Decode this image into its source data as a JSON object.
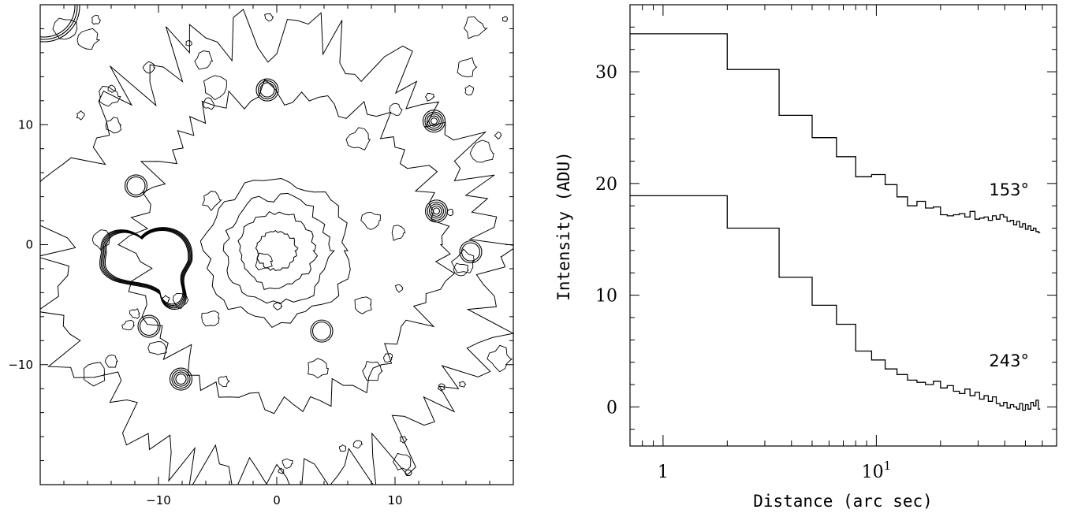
{
  "chart_data": [
    {
      "type": "contour",
      "xlim": [
        -20,
        20
      ],
      "ylim": [
        -20,
        20
      ],
      "x_ticks": [
        -10,
        0,
        10
      ],
      "y_ticks": [
        -10,
        0,
        10
      ],
      "x_tick_labels": [
        "−10",
        "0",
        "10"
      ],
      "y_tick_labels": [
        "−10",
        "0",
        "10"
      ],
      "grid": false,
      "features": [
        {
          "name": "double-core",
          "x": -10.5,
          "y": -1,
          "levels": 5
        },
        {
          "name": "diffuse-core",
          "x": 0,
          "y": -0.5,
          "levels": 4
        },
        {
          "name": "star",
          "x": 13.5,
          "y": 2.8,
          "levels": 5
        },
        {
          "name": "star",
          "x": 13.3,
          "y": 10.3,
          "levels": 5
        },
        {
          "name": "star",
          "x": -8.1,
          "y": -11.2,
          "levels": 4
        },
        {
          "name": "star",
          "x": -0.8,
          "y": 12.9,
          "levels": 3
        },
        {
          "name": "star",
          "x": 16.4,
          "y": -0.6,
          "levels": 2
        },
        {
          "name": "star",
          "x": 3.8,
          "y": -7.2,
          "levels": 2
        },
        {
          "name": "star",
          "x": -10.8,
          "y": -6.8,
          "levels": 2
        },
        {
          "name": "star",
          "x": -11.9,
          "y": 4.9,
          "levels": 2
        },
        {
          "name": "bright-star-corner",
          "x": -20,
          "y": 20,
          "levels": 3
        }
      ]
    },
    {
      "type": "line",
      "xscale": "log",
      "xlim": [
        0.7,
        70
      ],
      "ylim": [
        -3.5,
        36
      ],
      "xlabel": "Distance (arc sec)",
      "ylabel": "Intensity (ADU)",
      "x_ticks_labeled": [
        1,
        10
      ],
      "x_tick_labels": [
        {
          "base": "1",
          "exp": ""
        },
        {
          "base": "10",
          "exp": "1"
        }
      ],
      "y_ticks": [
        0,
        10,
        20,
        30
      ],
      "y_tick_labels": [
        "0",
        "10",
        "20",
        "30"
      ],
      "grid": false,
      "series": [
        {
          "name": "153°",
          "x": [
            0.7,
            2.0,
            3.5,
            5.0,
            6.5,
            8.0,
            9.5,
            11.0,
            12.5,
            14.0,
            15.5,
            17.0,
            18.5,
            20.0,
            21.5,
            23.0,
            24.5,
            26.0,
            27.5,
            29.0,
            30.5,
            32.0,
            33.5,
            35.0,
            36.5,
            38.0,
            39.5,
            41.0,
            42.5,
            44.0,
            45.5,
            47.0,
            48.5,
            50.0,
            51.5,
            53.0,
            54.5,
            56.0,
            57.5
          ],
          "y": [
            33.4,
            30.2,
            26.1,
            24.1,
            22.4,
            20.6,
            20.8,
            19.9,
            18.8,
            18.0,
            18.4,
            17.8,
            17.9,
            17.2,
            17.1,
            17.2,
            17.3,
            17.0,
            17.5,
            16.8,
            16.9,
            17.0,
            16.7,
            17.1,
            16.8,
            17.2,
            17.0,
            16.6,
            16.7,
            16.3,
            16.6,
            16.1,
            16.4,
            15.9,
            16.2,
            15.8,
            16.0,
            15.7,
            15.6
          ]
        },
        {
          "name": "243°",
          "x": [
            0.7,
            2.0,
            3.5,
            5.0,
            6.5,
            8.0,
            9.5,
            11.0,
            12.5,
            14.0,
            15.5,
            17.0,
            18.5,
            20.0,
            21.5,
            23.0,
            24.5,
            26.0,
            27.5,
            29.0,
            30.5,
            32.0,
            33.5,
            35.0,
            36.5,
            38.0,
            39.5,
            41.0,
            42.5,
            44.0,
            45.5,
            47.0,
            48.5,
            50.0,
            51.5,
            53.0,
            54.5,
            56.0,
            57.5
          ],
          "y": [
            18.9,
            16.0,
            11.6,
            9.1,
            7.4,
            5.0,
            4.2,
            3.4,
            2.9,
            2.4,
            2.2,
            2.0,
            2.3,
            1.7,
            1.9,
            1.4,
            1.2,
            1.6,
            1.0,
            1.3,
            0.7,
            1.0,
            0.5,
            0.9,
            0.3,
            0.1,
            0.4,
            -0.1,
            0.2,
            0.0,
            -0.2,
            0.3,
            -0.3,
            0.2,
            -0.2,
            0.4,
            0.1,
            0.6,
            -0.2
          ]
        }
      ]
    }
  ]
}
